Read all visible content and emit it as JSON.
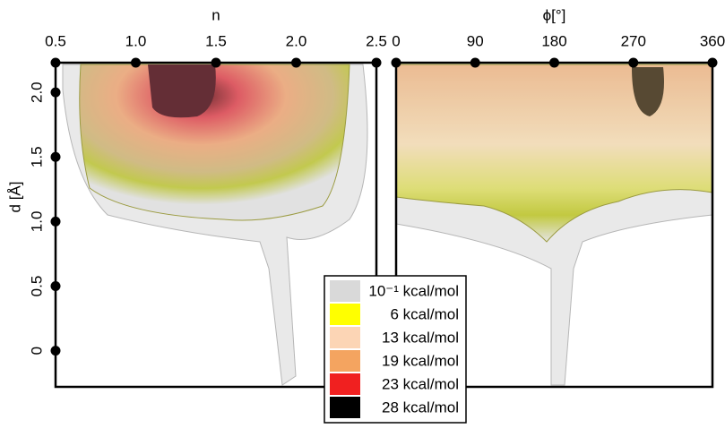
{
  "chart_data": [
    {
      "type": "surface",
      "xlabel": "n",
      "xlim": [
        0.5,
        2.5
      ],
      "xticks": [
        0.5,
        {
          "value": 1,
          "label": "1.0"
        },
        1.5,
        {
          "value": 2,
          "label": "2.0"
        },
        2.5
      ],
      "ylabel": "d [Å]",
      "ylim": [
        -0.28,
        2.23
      ],
      "yticks": [
        0,
        0.5,
        {
          "value": 1,
          "label": "1.0"
        },
        1.5,
        {
          "value": 2,
          "label": "2.0"
        }
      ]
    },
    {
      "type": "surface",
      "xlabel": "ϕ[°]",
      "xlim": [
        0,
        360
      ],
      "xticks": [
        0,
        90,
        180,
        270,
        360
      ],
      "ylim": [
        -0.28,
        2.23
      ]
    }
  ],
  "legend": {
    "items": [
      {
        "label": "10⁻¹ kcal/mol",
        "color": "#d9d9d9"
      },
      {
        "label": "6 kcal/mol",
        "color": "#ffff00"
      },
      {
        "label": "13 kcal/mol",
        "color": "#fcd5b5"
      },
      {
        "label": "19 kcal/mol",
        "color": "#f4a460"
      },
      {
        "label": "23 kcal/mol",
        "color": "#f02020"
      },
      {
        "label": "28 kcal/mol",
        "color": "#000000"
      }
    ]
  }
}
